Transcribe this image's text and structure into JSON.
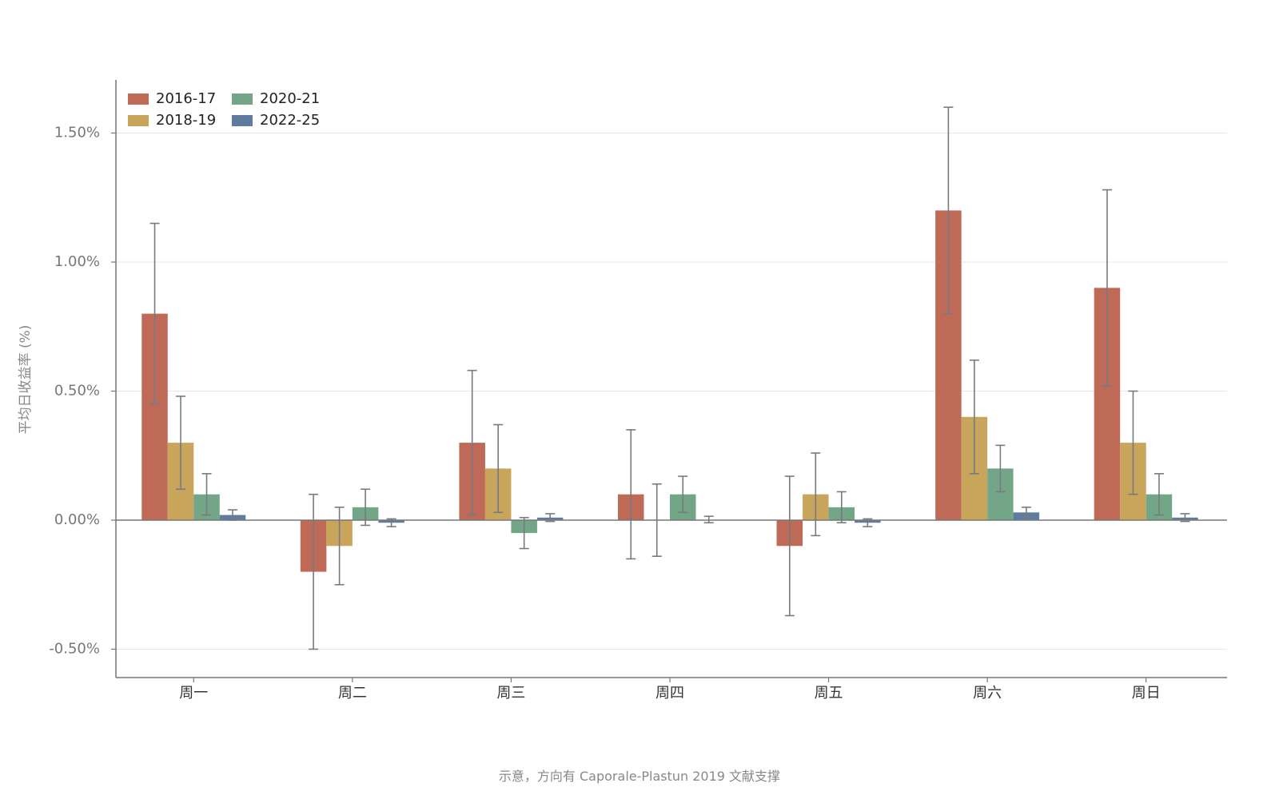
{
  "chart_data": {
    "type": "bar",
    "title": "",
    "ylabel": "平均日收益率 (%)",
    "xlabel": "",
    "categories": [
      "周一",
      "周二",
      "周三",
      "周四",
      "周五",
      "周六",
      "周日"
    ],
    "yticks": [
      {
        "value": 1.5,
        "label": "1.50%"
      },
      {
        "value": 1.0,
        "label": "1.00%"
      },
      {
        "value": 0.5,
        "label": "0.50%"
      },
      {
        "value": 0.0,
        "label": "0.00%"
      },
      {
        "value": -0.5,
        "label": "-0.50%"
      }
    ],
    "ylim": [
      -0.6,
      1.7
    ],
    "grid": true,
    "legend_position": "top-left",
    "series": [
      {
        "name": "2016-17",
        "color": "#be6a57",
        "values": [
          0.8,
          -0.2,
          0.3,
          0.1,
          -0.1,
          1.2,
          0.9
        ],
        "err_low": [
          0.45,
          -0.5,
          0.02,
          -0.15,
          -0.37,
          0.8,
          0.52
        ],
        "err_high": [
          1.15,
          0.1,
          0.58,
          0.35,
          0.17,
          1.6,
          1.28
        ]
      },
      {
        "name": "2018-19",
        "color": "#c8a55a",
        "values": [
          0.3,
          -0.1,
          0.2,
          0.0,
          0.1,
          0.4,
          0.3
        ],
        "err_low": [
          0.12,
          -0.25,
          0.03,
          -0.14,
          -0.06,
          0.18,
          0.1
        ],
        "err_high": [
          0.48,
          0.05,
          0.37,
          0.14,
          0.26,
          0.62,
          0.5
        ]
      },
      {
        "name": "2020-21",
        "color": "#72a687",
        "values": [
          0.1,
          0.05,
          -0.05,
          0.1,
          0.05,
          0.2,
          0.1
        ],
        "err_low": [
          0.02,
          -0.02,
          -0.11,
          0.03,
          -0.01,
          0.11,
          0.02
        ],
        "err_high": [
          0.18,
          0.12,
          0.01,
          0.17,
          0.11,
          0.29,
          0.18
        ]
      },
      {
        "name": "2022-25",
        "color": "#5e7ca0",
        "values": [
          0.02,
          -0.01,
          0.01,
          0.0,
          -0.01,
          0.03,
          0.01
        ],
        "err_low": [
          0.0,
          -0.025,
          -0.005,
          -0.01,
          -0.025,
          0.01,
          -0.005
        ],
        "err_high": [
          0.04,
          0.005,
          0.025,
          0.015,
          0.005,
          0.05,
          0.025
        ]
      }
    ],
    "caption": "示意，方向有 Caporale-Plastun 2019 文献支撑"
  }
}
